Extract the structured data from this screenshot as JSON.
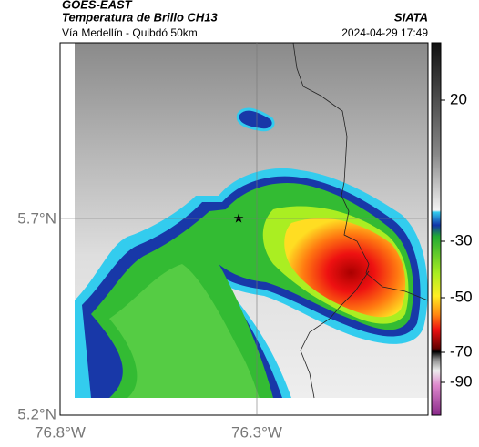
{
  "header": {
    "source": "GOES-EAST",
    "title": "Temperatura de Brillo CH13",
    "location": "Vía Medellín - Quibdó 50km",
    "agency": "SIATA",
    "datetime": "2024-04-29 17:49"
  },
  "map": {
    "lat_ticks": [
      "5.7°N",
      "5.2°N"
    ],
    "lon_ticks": [
      "76.8°W",
      "76.3°W"
    ]
  },
  "colorbar": {
    "ticks": [
      20,
      -30,
      -50,
      -70,
      -90
    ]
  }
}
